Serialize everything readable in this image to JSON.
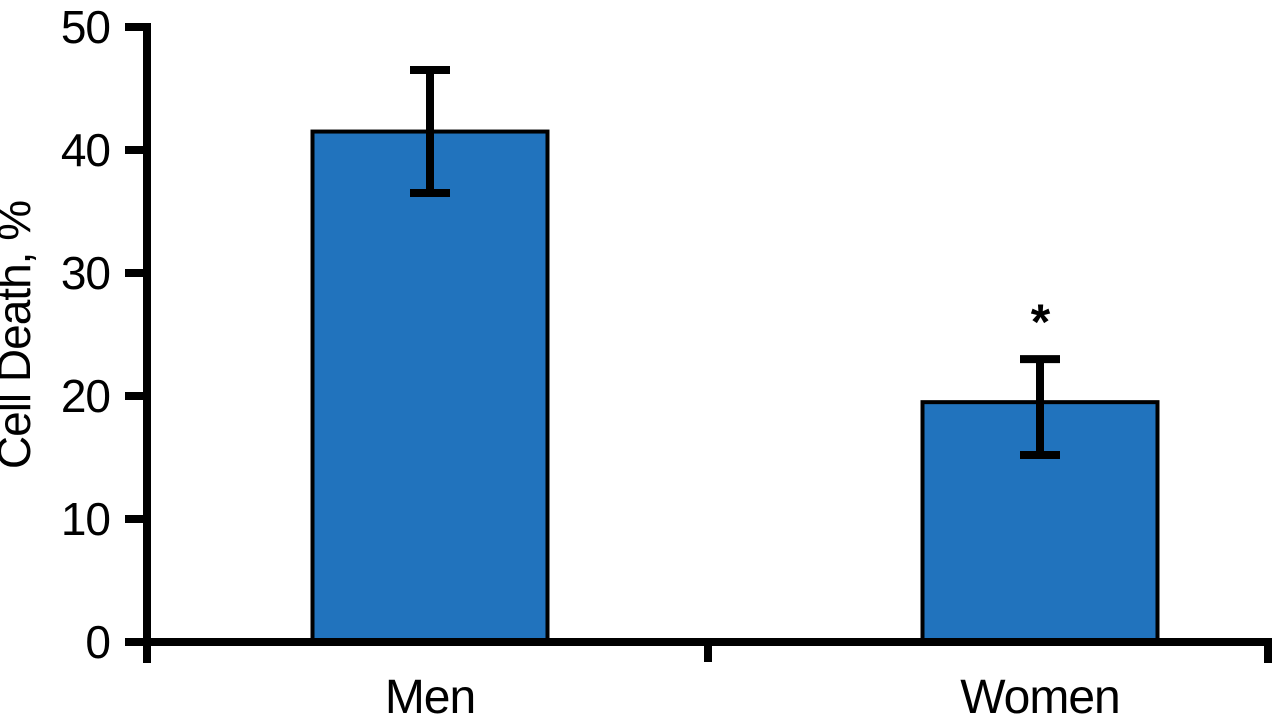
{
  "chart_data": {
    "type": "bar",
    "title": "",
    "ylabel": "Cell Death, %",
    "xlabel": "",
    "categories": [
      "Men",
      "Women"
    ],
    "series": [
      {
        "category": "Men",
        "value": 41.5,
        "error_low": 36.5,
        "error_high": 46.5,
        "annotation": ""
      },
      {
        "category": "Women",
        "value": 19.5,
        "error_low": 15.2,
        "error_high": 23,
        "annotation": "*"
      }
    ],
    "ylim": [
      0,
      50
    ],
    "yticks": [
      0,
      10,
      20,
      30,
      40,
      50
    ],
    "ytick_labels": [
      "0",
      "10",
      "20",
      "30",
      "40",
      "50"
    ],
    "grid": false,
    "legend": "none",
    "bar_fill_color": "#2173BD",
    "bar_border_color": "#000000",
    "axis_color": "#000000",
    "error_bar_color": "#000000",
    "background_color": "#FFFFFF"
  }
}
